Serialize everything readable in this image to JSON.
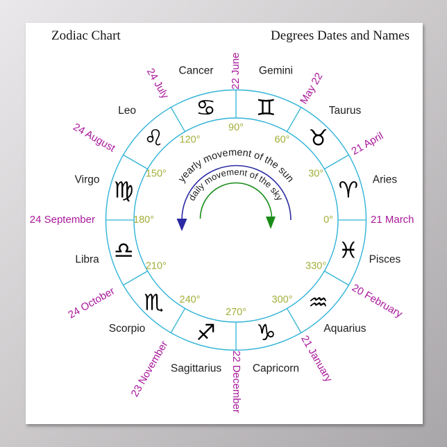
{
  "header": {
    "title_left": "Zodiac Chart",
    "title_right": "Degrees Dates and Names"
  },
  "colors": {
    "ring": "#2fb3d7",
    "degree_text": "#a3ae38",
    "date_text": "#a8189a",
    "sign_text": "#1c1c1c",
    "symbol": "#000000",
    "yearly_arc": "#2b29a3",
    "daily_arc": "#188c18",
    "poster_bg": "#ffffff"
  },
  "center_motif": {
    "yearly_label": "yearly movement of the sun",
    "daily_label": "daily movement of the sky"
  },
  "signs": [
    {
      "name": "Aries",
      "symbol": "♈",
      "cusp_degree": "0°",
      "cusp_date": "21 March"
    },
    {
      "name": "Taurus",
      "symbol": "♉",
      "cusp_degree": "30°",
      "cusp_date": "21 April"
    },
    {
      "name": "Gemini",
      "symbol": "♊",
      "cusp_degree": "60°",
      "cusp_date": "May 22"
    },
    {
      "name": "Cancer",
      "symbol": "♋",
      "cusp_degree": "90°",
      "cusp_date": "22 June"
    },
    {
      "name": "Leo",
      "symbol": "♌",
      "cusp_degree": "120°",
      "cusp_date": "24 July"
    },
    {
      "name": "Virgo",
      "symbol": "♍",
      "cusp_degree": "150°",
      "cusp_date": "24 August"
    },
    {
      "name": "Libra",
      "symbol": "♎",
      "cusp_degree": "180°",
      "cusp_date": "24 September"
    },
    {
      "name": "Scorpio",
      "symbol": "♏",
      "cusp_degree": "210°",
      "cusp_date": "24 October"
    },
    {
      "name": "Sagittarius",
      "symbol": "♐",
      "cusp_degree": "240°",
      "cusp_date": "23 November"
    },
    {
      "name": "Capricorn",
      "symbol": "♑",
      "cusp_degree": "270°",
      "cusp_date": "22 December"
    },
    {
      "name": "Aquarius",
      "symbol": "♒",
      "cusp_degree": "300°",
      "cusp_date": "21 January"
    },
    {
      "name": "Pisces",
      "symbol": "♓",
      "cusp_degree": "330°",
      "cusp_date": "20 February"
    }
  ]
}
